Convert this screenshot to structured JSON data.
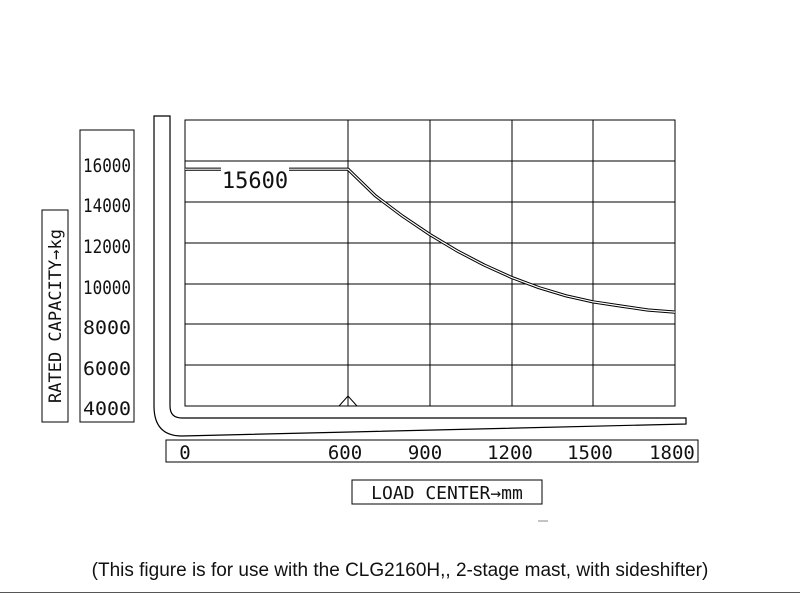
{
  "chart_data": {
    "type": "line",
    "x": [
      0,
      600,
      700,
      800,
      900,
      1000,
      1100,
      1200,
      1300,
      1400,
      1500,
      1600,
      1700,
      1800
    ],
    "series": [
      {
        "values": [
          15600,
          15600,
          14300,
          13300,
          12400,
          11600,
          10900,
          10300,
          9800,
          9400,
          9100,
          8900,
          8700,
          8600
        ]
      }
    ],
    "ylabel": "RATED CAPACITY→kg",
    "xlabel": "LOAD CENTER→mm",
    "y_ticks": [
      "16000",
      "14000",
      "12000",
      "10000",
      "8000",
      "6000",
      "4000"
    ],
    "x_ticks": [
      "0",
      "600",
      "900",
      "1200",
      "1500",
      "1800"
    ],
    "annotation": "15600",
    "grid": true,
    "line_color": "#000000"
  },
  "caption": "(This figure is for use with the CLG2160H,, 2-stage mast, with sideshifter)"
}
